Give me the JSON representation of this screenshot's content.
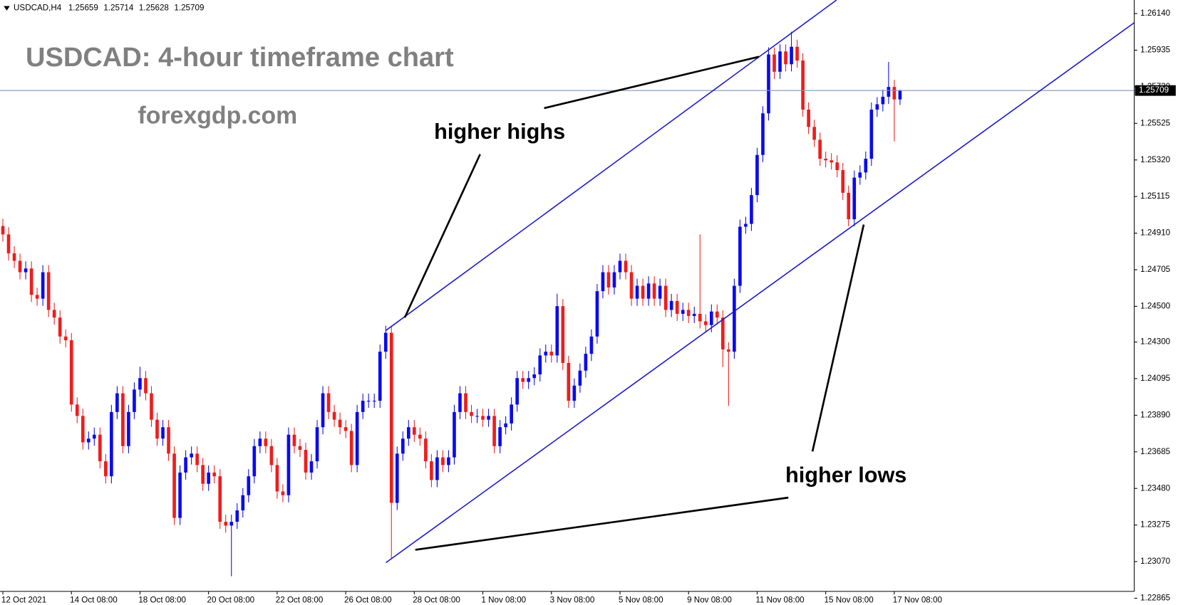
{
  "chart_data": {
    "type": "candlestick",
    "symbol": "USDCAD,H4",
    "title": "USDCAD: 4-hour timeframe chart",
    "subtitle": "forexgdp.com",
    "annotations": [
      "higher highs",
      "higher lows"
    ],
    "up_color": "#0a0af0",
    "down_color": "#f01c1c",
    "grid": false,
    "xlim": [
      -0.5,
      198
    ],
    "xticks": [
      {
        "value": 0,
        "label": "12 Oct 2021"
      },
      {
        "value": 12,
        "label": "14 Oct 08:00"
      },
      {
        "value": 24,
        "label": "18 Oct 08:00"
      },
      {
        "value": 36,
        "label": "20 Oct 08:00"
      },
      {
        "value": 48,
        "label": "22 Oct 08:00"
      },
      {
        "value": 60,
        "label": "26 Oct 08:00"
      },
      {
        "value": 72,
        "label": "28 Oct 08:00"
      },
      {
        "value": 84,
        "label": "1 Nov 08:00"
      },
      {
        "value": 96,
        "label": "3 Nov 08:00"
      },
      {
        "value": 108,
        "label": "5 Nov 08:00"
      },
      {
        "value": 120,
        "label": "9 Nov 08:00"
      },
      {
        "value": 132,
        "label": "11 Nov 08:00"
      },
      {
        "value": 144,
        "label": "15 Nov 08:00"
      },
      {
        "value": 156,
        "label": "17 Nov 08:00"
      }
    ],
    "ylim": [
      1.22827,
      1.26216
    ],
    "yticks": [
      {
        "value": 1.2614,
        "label": "1.26140"
      },
      1.25935,
      {
        "value": 1.2573,
        "label": "1.25730"
      },
      1.25525,
      {
        "value": 1.2532,
        "label": "1.25320"
      },
      1.25115,
      {
        "value": 1.2491,
        "label": "1.24910"
      },
      1.24705,
      {
        "value": 1.245,
        "label": "1.24500"
      },
      {
        "value": 1.243,
        "label": "1.24300"
      },
      1.24095,
      {
        "value": 1.2389,
        "label": "1.23890"
      },
      1.23685,
      {
        "value": 1.2348,
        "label": "1.23480"
      },
      1.23275,
      {
        "value": 1.2307,
        "label": "1.23070"
      },
      1.22865
    ],
    "open": [
      1.2495,
      1.24903,
      1.24797,
      1.24755,
      1.24691,
      1.24712,
      1.24564,
      1.24543,
      1.24691,
      1.2448,
      1.24437,
      1.24331,
      1.2431,
      1.2395,
      1.23886,
      1.23738,
      1.23759,
      1.23781,
      1.23632,
      1.23548,
      1.23908,
      1.24013,
      1.23717,
      1.23908,
      1.24034,
      1.24098,
      1.24013,
      1.23865,
      1.23759,
      1.23823,
      1.23675,
      1.23315,
      1.23569,
      1.23654,
      1.23675,
      1.23611,
      1.23506,
      1.23569,
      1.23548,
      1.23293,
      1.23272,
      1.23293,
      1.23357,
      1.23442,
      1.23548,
      1.23717,
      1.23759,
      1.23717,
      1.23611,
      1.23463,
      1.23442,
      1.23781,
      1.23717,
      1.23696,
      1.23569,
      1.23632,
      1.23823,
      1.24013,
      1.23908,
      1.23865,
      1.23823,
      1.23802,
      1.23611,
      1.23908,
      1.23971,
      1.23971,
      1.23971,
      1.24246,
      1.24352,
      1.23399,
      1.23675,
      1.23759,
      1.23823,
      1.23781,
      1.23759,
      1.23632,
      1.23527,
      1.23654,
      1.23611,
      1.23654,
      1.23908,
      1.24013,
      1.23908,
      1.23886,
      1.23886,
      1.23865,
      1.23886,
      1.23717,
      1.23823,
      1.23844,
      1.2395,
      1.24098,
      1.24077,
      1.24098,
      1.24119,
      1.24225,
      1.24246,
      1.24225,
      1.24501,
      1.24183,
      1.23971,
      1.24056,
      1.2414,
      1.24234,
      1.24331,
      1.24585,
      1.24691,
      1.24606,
      1.24691,
      1.24755,
      1.24691,
      1.24543,
      1.24615,
      1.24543,
      1.24628,
      1.24543,
      1.24615,
      1.2448,
      1.2453,
      1.24458,
      1.2448,
      1.24446,
      1.24458,
      1.24416,
      1.24395,
      1.24471,
      1.24437,
      1.24259,
      1.24246,
      1.24615,
      1.24946,
      1.24962,
      1.25123,
      1.25348,
      1.25581,
      1.25911,
      1.25814,
      1.25928,
      1.25856,
      1.25954,
      1.25877,
      1.25602,
      1.25505,
      1.25433,
      1.25327,
      1.25318,
      1.25306,
      1.25263,
      1.25136,
      1.24988,
      1.25221,
      1.2525,
      1.25327,
      1.25602,
      1.25632,
      1.25674,
      1.25729,
      1.25659
    ],
    "high": [
      1.2499,
      1.24943,
      1.24837,
      1.24795,
      1.24752,
      1.24752,
      1.24604,
      1.24731,
      1.24731,
      1.2452,
      1.24477,
      1.24371,
      1.2435,
      1.2399,
      1.23926,
      1.23799,
      1.23821,
      1.23821,
      1.23672,
      1.23948,
      1.24053,
      1.24053,
      1.23948,
      1.24074,
      1.24162,
      1.24138,
      1.24053,
      1.23905,
      1.23863,
      1.23863,
      1.23715,
      1.23609,
      1.23694,
      1.23715,
      1.23715,
      1.23651,
      1.23609,
      1.23609,
      1.23588,
      1.23333,
      1.23333,
      1.23397,
      1.23482,
      1.23588,
      1.23757,
      1.23799,
      1.23799,
      1.23757,
      1.23651,
      1.23503,
      1.23821,
      1.23821,
      1.23757,
      1.23736,
      1.23672,
      1.23863,
      1.24053,
      1.24053,
      1.23948,
      1.23905,
      1.23863,
      1.23842,
      1.23948,
      1.24011,
      1.24011,
      1.24011,
      1.24286,
      1.24392,
      1.24392,
      1.23715,
      1.23799,
      1.23863,
      1.23863,
      1.23821,
      1.23799,
      1.23672,
      1.23694,
      1.23694,
      1.23694,
      1.23948,
      1.24053,
      1.24053,
      1.23948,
      1.23926,
      1.23926,
      1.23926,
      1.23926,
      1.23863,
      1.23884,
      1.2399,
      1.24138,
      1.24138,
      1.24138,
      1.24159,
      1.24265,
      1.24286,
      1.24286,
      1.24571,
      1.24541,
      1.24223,
      1.24096,
      1.2418,
      1.24274,
      1.24371,
      1.24625,
      1.24731,
      1.24731,
      1.24731,
      1.24795,
      1.24795,
      1.24731,
      1.24655,
      1.24655,
      1.24668,
      1.24668,
      1.24655,
      1.24655,
      1.2457,
      1.2457,
      1.2452,
      1.2452,
      1.24498,
      1.24903,
      1.24456,
      1.24511,
      1.24511,
      1.24477,
      1.24299,
      1.24655,
      1.24986,
      1.25002,
      1.25163,
      1.25388,
      1.25621,
      1.25951,
      1.25951,
      1.25968,
      1.25968,
      1.26038,
      1.25994,
      1.25917,
      1.25642,
      1.25545,
      1.25473,
      1.25367,
      1.25358,
      1.25346,
      1.25303,
      1.25176,
      1.25261,
      1.2529,
      1.25367,
      1.25642,
      1.25672,
      1.25714,
      1.25869,
      1.25769,
      1.25714
    ],
    "low": [
      1.24863,
      1.24757,
      1.24715,
      1.24651,
      1.24651,
      1.24524,
      1.24503,
      1.24503,
      1.2444,
      1.24397,
      1.24291,
      1.2427,
      1.2391,
      1.23846,
      1.23698,
      1.23698,
      1.23719,
      1.23592,
      1.23508,
      1.23508,
      1.23868,
      1.23677,
      1.23677,
      1.23868,
      1.23994,
      1.23973,
      1.23825,
      1.23719,
      1.23719,
      1.23635,
      1.23275,
      1.23275,
      1.23529,
      1.23614,
      1.23571,
      1.23466,
      1.23466,
      1.23508,
      1.23253,
      1.23232,
      1.22988,
      1.23253,
      1.23317,
      1.23402,
      1.23508,
      1.23677,
      1.23677,
      1.23571,
      1.23423,
      1.23402,
      1.23402,
      1.23677,
      1.23656,
      1.23529,
      1.23529,
      1.23592,
      1.23783,
      1.23868,
      1.23825,
      1.23783,
      1.23762,
      1.23571,
      1.23571,
      1.23868,
      1.23931,
      1.23931,
      1.23931,
      1.24206,
      1.2309,
      1.23359,
      1.23635,
      1.23719,
      1.23741,
      1.23719,
      1.23592,
      1.23487,
      1.23487,
      1.23571,
      1.23571,
      1.23614,
      1.23868,
      1.23868,
      1.23846,
      1.23846,
      1.23825,
      1.23825,
      1.23677,
      1.23677,
      1.23783,
      1.23804,
      1.2391,
      1.24037,
      1.24037,
      1.24058,
      1.24079,
      1.24185,
      1.24185,
      1.24185,
      1.24143,
      1.23931,
      1.23931,
      1.24016,
      1.241,
      1.24194,
      1.24291,
      1.24545,
      1.24566,
      1.24566,
      1.24651,
      1.24651,
      1.24503,
      1.24503,
      1.24503,
      1.24503,
      1.24503,
      1.24503,
      1.2444,
      1.2444,
      1.24418,
      1.24418,
      1.24406,
      1.24406,
      1.24376,
      1.24355,
      1.24355,
      1.24397,
      1.2416,
      1.23942,
      1.24206,
      1.24575,
      1.24906,
      1.24922,
      1.25083,
      1.25308,
      1.25541,
      1.25774,
      1.25774,
      1.25816,
      1.25816,
      1.25837,
      1.25562,
      1.25465,
      1.25393,
      1.25287,
      1.25278,
      1.25266,
      1.25223,
      1.25096,
      1.24948,
      1.24948,
      1.25181,
      1.2521,
      1.25287,
      1.25562,
      1.25592,
      1.25634,
      1.25424,
      1.25628
    ],
    "close": [
      1.24903,
      1.24797,
      1.24755,
      1.24691,
      1.24712,
      1.24564,
      1.24543,
      1.24691,
      1.2448,
      1.24437,
      1.24331,
      1.2431,
      1.2395,
      1.23886,
      1.23738,
      1.23759,
      1.23781,
      1.23632,
      1.23548,
      1.23908,
      1.24013,
      1.23717,
      1.23908,
      1.24034,
      1.24098,
      1.24013,
      1.23865,
      1.23759,
      1.23823,
      1.23675,
      1.23315,
      1.23569,
      1.23654,
      1.23675,
      1.23611,
      1.23506,
      1.23569,
      1.23548,
      1.23293,
      1.23272,
      1.23293,
      1.23357,
      1.23442,
      1.23548,
      1.23717,
      1.23759,
      1.23717,
      1.23611,
      1.23463,
      1.23442,
      1.23781,
      1.23717,
      1.23696,
      1.23569,
      1.23632,
      1.23823,
      1.24013,
      1.23908,
      1.23865,
      1.23823,
      1.23802,
      1.23611,
      1.23908,
      1.23971,
      1.23971,
      1.23971,
      1.24246,
      1.24352,
      1.23399,
      1.23675,
      1.23759,
      1.23823,
      1.23781,
      1.23759,
      1.23632,
      1.23527,
      1.23654,
      1.23611,
      1.23654,
      1.23908,
      1.24013,
      1.23908,
      1.23886,
      1.23886,
      1.23865,
      1.23886,
      1.23717,
      1.23823,
      1.23844,
      1.2395,
      1.24098,
      1.24077,
      1.24098,
      1.24119,
      1.24225,
      1.24246,
      1.24225,
      1.24501,
      1.24183,
      1.23971,
      1.24056,
      1.2414,
      1.24234,
      1.24331,
      1.24585,
      1.24691,
      1.24606,
      1.24691,
      1.24755,
      1.24691,
      1.24543,
      1.24615,
      1.24543,
      1.24628,
      1.24543,
      1.24615,
      1.2448,
      1.2453,
      1.24458,
      1.2448,
      1.24446,
      1.24458,
      1.24416,
      1.24395,
      1.24471,
      1.24437,
      1.24259,
      1.24246,
      1.24615,
      1.24946,
      1.24962,
      1.25123,
      1.25348,
      1.25581,
      1.25911,
      1.25814,
      1.25928,
      1.25856,
      1.25954,
      1.25877,
      1.25602,
      1.25505,
      1.25433,
      1.25327,
      1.25318,
      1.25306,
      1.25263,
      1.25136,
      1.24988,
      1.25221,
      1.2525,
      1.25327,
      1.25602,
      1.25632,
      1.25674,
      1.25729,
      1.25659,
      1.25709
    ]
  }
}
